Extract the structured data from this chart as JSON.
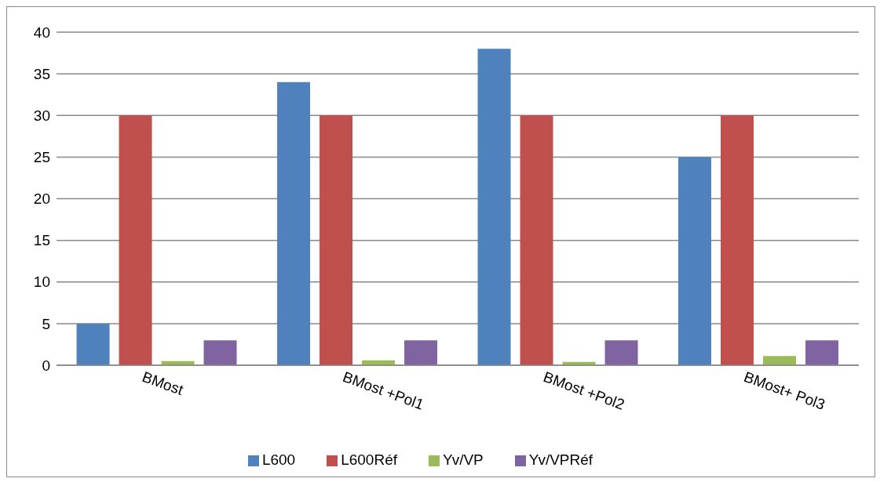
{
  "chart_data": {
    "type": "bar",
    "categories": [
      "BMost",
      "BMost +Pol1",
      "BMost +Pol2",
      "BMost+ Pol3"
    ],
    "series": [
      {
        "name": "L600",
        "color": "#4f81bd",
        "values": [
          5,
          34,
          38,
          25
        ]
      },
      {
        "name": "L600Réf",
        "color": "#c0504d",
        "values": [
          30,
          30,
          30,
          30
        ]
      },
      {
        "name": "Yv/VP",
        "color": "#9bbb59",
        "values": [
          0.5,
          0.6,
          0.4,
          1.1
        ]
      },
      {
        "name": "Yv/VPRéf",
        "color": "#8064a2",
        "values": [
          3,
          3,
          3,
          3
        ]
      }
    ],
    "ylim": [
      0,
      40
    ],
    "yticks": [
      0,
      5,
      10,
      15,
      20,
      25,
      30,
      35,
      40
    ],
    "grid": "y",
    "legend": "bottom"
  }
}
